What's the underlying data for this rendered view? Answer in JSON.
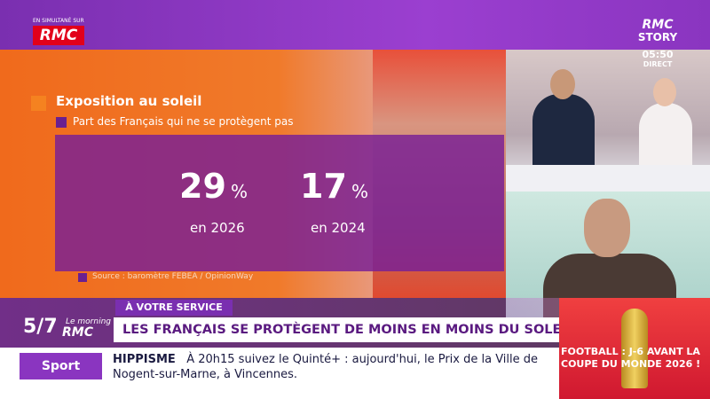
{
  "channel": {
    "simulcast_label": "EN SIMULTANÉ SUR",
    "simulcast_logo": "RMC",
    "logo_top": "RMC",
    "logo_bottom": "STORY",
    "time": "05:50",
    "live": "DIRECT"
  },
  "infographic": {
    "title": "Exposition au soleil",
    "subtitle": "Part des Français qui ne se protègent pas",
    "stats": [
      {
        "value": 29,
        "unit": "%",
        "label": "en 2026"
      },
      {
        "value": 17,
        "unit": "%",
        "label": "en 2024"
      }
    ],
    "source": "Source : baromètre FEBEA / OpinionWay"
  },
  "show": {
    "number": "5/7",
    "name_top": "Le morning",
    "name_bottom": "RMC"
  },
  "lower_third": {
    "tag": "À VOTRE SERVICE",
    "headline": "LES FRANÇAIS SE PROTÈGENT DE MOINS EN MOINS DU SOLEIL"
  },
  "ticker": {
    "section": "Sport",
    "topic": "HIPPISME",
    "text_line1": "À 20h15 suivez le Quinté+ : aujourd'hui, le Prix de la Ville de",
    "text_line2": "Nogent-sur-Marne, à Vincennes."
  },
  "promo": {
    "line1": "FOOTBALL : J-6 AVANT LA",
    "line2": "COUPE DU MONDE 2026 !"
  }
}
